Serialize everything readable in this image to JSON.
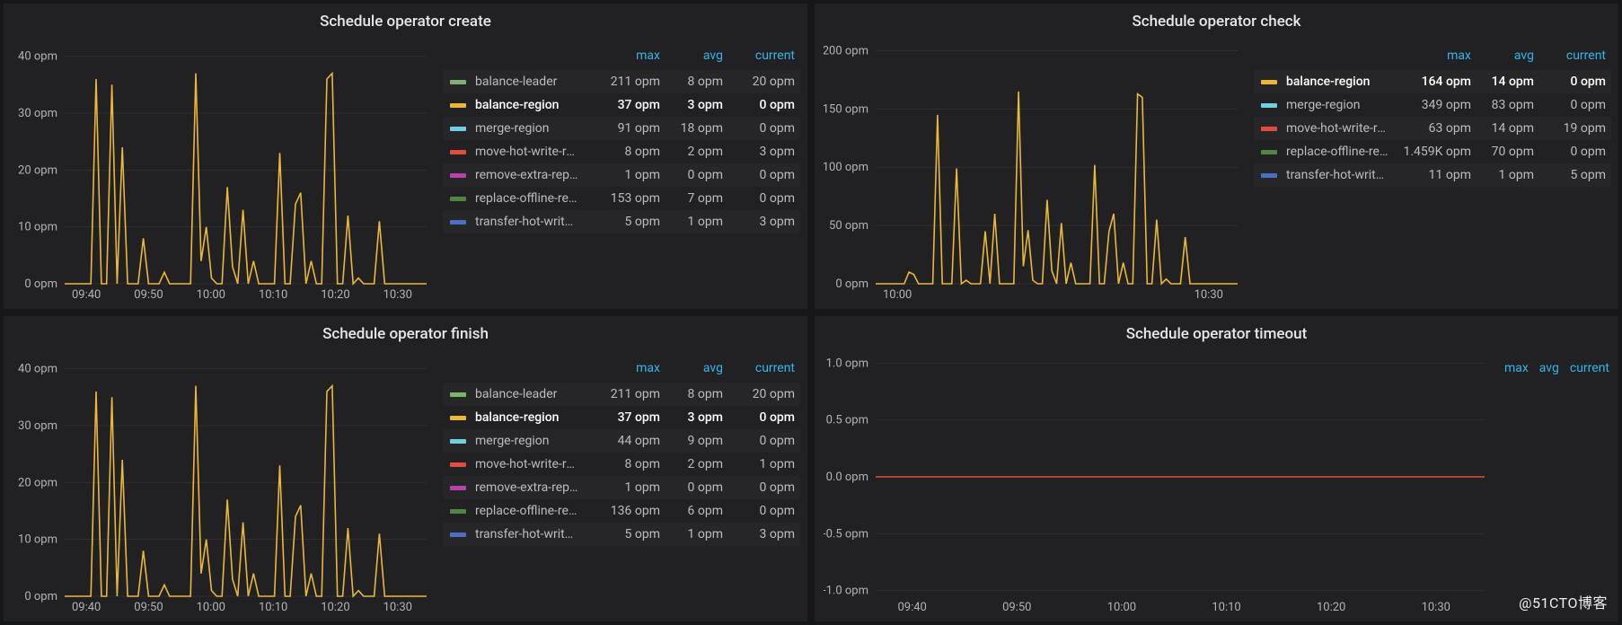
{
  "watermark": "@51CTO博客",
  "legend_header": {
    "max": "max",
    "avg": "avg",
    "current": "current"
  },
  "panels": {
    "create": {
      "title": "Schedule operator create",
      "chart": {
        "type": "line",
        "x_ticks": [
          "09:40",
          "09:50",
          "10:00",
          "10:10",
          "10:20",
          "10:30"
        ],
        "y_ticks": [
          0,
          10,
          20,
          30,
          40
        ],
        "y_unit": " opm",
        "ylim": [
          0,
          42
        ],
        "background": "#212124",
        "grid_color": "#303033",
        "axis_color": "#b0b3b8",
        "series_shown": {
          "name": "balance-region",
          "color": "#eab839",
          "points": [
            0,
            0,
            0,
            0,
            0,
            0,
            36,
            0,
            0,
            35,
            0,
            24,
            0,
            0,
            0,
            8,
            0,
            0,
            0,
            2,
            0,
            0,
            0,
            0,
            0,
            37,
            4,
            10,
            1,
            0,
            0,
            17,
            3,
            0,
            13,
            0,
            4,
            0,
            0,
            0,
            0,
            23,
            0,
            0,
            14,
            16,
            0,
            4,
            0,
            0,
            36,
            37,
            0,
            0,
            12,
            0,
            1,
            0,
            0,
            0,
            11,
            0,
            0,
            0,
            0,
            0,
            0,
            0,
            0,
            0
          ]
        }
      },
      "legend": [
        {
          "color": "#7eb26d",
          "name": "balance-leader",
          "max": "211 opm",
          "avg": "8 opm",
          "current": "20 opm",
          "highlight": false
        },
        {
          "color": "#eab839",
          "name": "balance-region",
          "max": "37 opm",
          "avg": "3 opm",
          "current": "0 opm",
          "highlight": true
        },
        {
          "color": "#6ed0e0",
          "name": "merge-region",
          "max": "91 opm",
          "avg": "18 opm",
          "current": "0 opm",
          "highlight": false
        },
        {
          "color": "#e24d42",
          "name": "move-hot-write-region",
          "max": "8 opm",
          "avg": "2 opm",
          "current": "3 opm",
          "highlight": false
        },
        {
          "color": "#ba43a9",
          "name": "remove-extra-replica",
          "max": "1 opm",
          "avg": "0 opm",
          "current": "0 opm",
          "highlight": false
        },
        {
          "color": "#508642",
          "name": "replace-offline-replica",
          "max": "153 opm",
          "avg": "7 opm",
          "current": "0 opm",
          "highlight": false
        },
        {
          "color": "#4a6fc3",
          "name": "transfer-hot-write-leader",
          "max": "5 opm",
          "avg": "1 opm",
          "current": "3 opm",
          "highlight": false
        }
      ]
    },
    "check": {
      "title": "Schedule operator check",
      "chart": {
        "type": "line",
        "x_ticks": [
          "10:00",
          "10:30"
        ],
        "y_ticks": [
          0,
          50,
          100,
          150,
          200
        ],
        "y_unit": " opm",
        "ylim": [
          0,
          205
        ],
        "background": "#212124",
        "grid_color": "#303033",
        "axis_color": "#b0b3b8",
        "series_shown": {
          "name": "balance-region",
          "color": "#eab839",
          "points": [
            0,
            0,
            0,
            0,
            0,
            0,
            0,
            10,
            8,
            0,
            0,
            0,
            0,
            145,
            0,
            0,
            0,
            99,
            0,
            3,
            0,
            0,
            0,
            45,
            0,
            60,
            0,
            0,
            0,
            0,
            165,
            15,
            46,
            3,
            0,
            0,
            72,
            11,
            0,
            52,
            0,
            18,
            0,
            0,
            0,
            0,
            102,
            0,
            0,
            45,
            60,
            0,
            18,
            0,
            0,
            163,
            160,
            0,
            0,
            55,
            0,
            4,
            0,
            0,
            0,
            40,
            0,
            0,
            0,
            0,
            0,
            0,
            0,
            0,
            0,
            0,
            0
          ]
        }
      },
      "legend": [
        {
          "color": "#eab839",
          "name": "balance-region",
          "max": "164 opm",
          "avg": "14 opm",
          "current": "0 opm",
          "highlight": true
        },
        {
          "color": "#6ed0e0",
          "name": "merge-region",
          "max": "349 opm",
          "avg": "83 opm",
          "current": "0 opm",
          "highlight": false
        },
        {
          "color": "#e24d42",
          "name": "move-hot-write-region",
          "max": "63 opm",
          "avg": "14 opm",
          "current": "19 opm",
          "highlight": false
        },
        {
          "color": "#508642",
          "name": "replace-offline-replica",
          "max": "1.459K opm",
          "avg": "70 opm",
          "current": "0 opm",
          "highlight": false
        },
        {
          "color": "#4a6fc3",
          "name": "transfer-hot-write-leader",
          "max": "11 opm",
          "avg": "1 opm",
          "current": "5 opm",
          "highlight": false
        }
      ]
    },
    "finish": {
      "title": "Schedule operator finish",
      "chart": {
        "type": "line",
        "x_ticks": [
          "09:40",
          "09:50",
          "10:00",
          "10:10",
          "10:20",
          "10:30"
        ],
        "y_ticks": [
          0,
          10,
          20,
          30,
          40
        ],
        "y_unit": " opm",
        "ylim": [
          0,
          42
        ],
        "background": "#212124",
        "grid_color": "#303033",
        "axis_color": "#b0b3b8",
        "series_shown": {
          "name": "balance-region",
          "color": "#eab839",
          "points": [
            0,
            0,
            0,
            0,
            0,
            0,
            36,
            0,
            0,
            35,
            0,
            24,
            0,
            0,
            0,
            8,
            0,
            0,
            0,
            2,
            0,
            0,
            0,
            0,
            0,
            37,
            4,
            10,
            1,
            0,
            0,
            17,
            3,
            0,
            13,
            0,
            4,
            0,
            0,
            0,
            0,
            23,
            0,
            0,
            14,
            16,
            0,
            4,
            0,
            0,
            36,
            37,
            0,
            0,
            12,
            0,
            1,
            0,
            0,
            0,
            11,
            0,
            0,
            0,
            0,
            0,
            0,
            0,
            0,
            0
          ]
        }
      },
      "legend": [
        {
          "color": "#7eb26d",
          "name": "balance-leader",
          "max": "211 opm",
          "avg": "8 opm",
          "current": "20 opm",
          "highlight": false
        },
        {
          "color": "#eab839",
          "name": "balance-region",
          "max": "37 opm",
          "avg": "3 opm",
          "current": "0 opm",
          "highlight": true
        },
        {
          "color": "#6ed0e0",
          "name": "merge-region",
          "max": "44 opm",
          "avg": "9 opm",
          "current": "0 opm",
          "highlight": false
        },
        {
          "color": "#e24d42",
          "name": "move-hot-write-region",
          "max": "8 opm",
          "avg": "2 opm",
          "current": "1 opm",
          "highlight": false
        },
        {
          "color": "#ba43a9",
          "name": "remove-extra-replica",
          "max": "1 opm",
          "avg": "0 opm",
          "current": "0 opm",
          "highlight": false
        },
        {
          "color": "#508642",
          "name": "replace-offline-replica",
          "max": "136 opm",
          "avg": "6 opm",
          "current": "0 opm",
          "highlight": false
        },
        {
          "color": "#4a6fc3",
          "name": "transfer-hot-write-leader",
          "max": "5 opm",
          "avg": "1 opm",
          "current": "3 opm",
          "highlight": false
        }
      ]
    },
    "timeout": {
      "title": "Schedule operator timeout",
      "chart": {
        "type": "line",
        "x_ticks": [
          "09:40",
          "09:50",
          "10:00",
          "10:10",
          "10:20",
          "10:30"
        ],
        "y_ticks": [
          -1.0,
          -0.5,
          0,
          0.5,
          1.0
        ],
        "y_unit": " opm",
        "y_decimals": 1,
        "ylim": [
          -1.05,
          1.05
        ],
        "background": "#212124",
        "grid_color": "#303033",
        "axis_color": "#b0b3b8",
        "flat_series": {
          "color": "#e24d42",
          "value": 0
        }
      },
      "legend_header_only": true
    }
  }
}
